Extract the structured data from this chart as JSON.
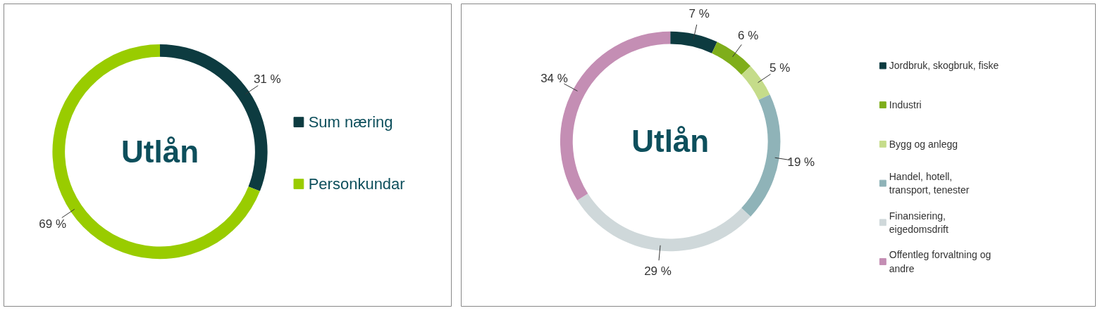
{
  "chart_data": [
    {
      "type": "donut",
      "annotations": [
        "Utlån"
      ],
      "categories": [
        "Sum næring",
        "Personkundar"
      ],
      "values": [
        31,
        69
      ],
      "colors": [
        "#0d3b40",
        "#99cc00"
      ],
      "value_labels": [
        "31 %",
        "69 %"
      ],
      "legend": "right"
    },
    {
      "type": "donut",
      "annotations": [
        "Utlån"
      ],
      "categories": [
        "Jordbruk, skogbruk, fiske",
        "Industri",
        "Bygg og anlegg",
        "Handel, hotell, transport, tenester",
        "Finansiering, eigedomsdrift",
        "Offentleg forvaltning og andre"
      ],
      "values": [
        7,
        6,
        5,
        19,
        29,
        34
      ],
      "colors": [
        "#0d3b40",
        "#7fae1b",
        "#c5dc8a",
        "#8fb3b8",
        "#cfd8da",
        "#c48eb4"
      ],
      "value_labels": [
        "7 %",
        "6 %",
        "5 %",
        "19 %",
        "29 %",
        "34 %"
      ],
      "legend": "right"
    }
  ]
}
